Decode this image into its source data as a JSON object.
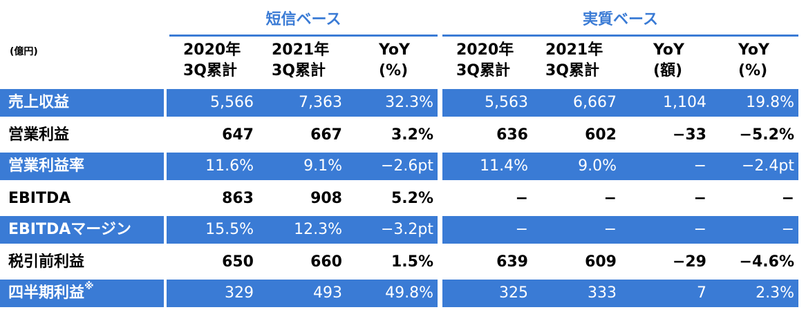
{
  "unit": "(億円)",
  "groups": {
    "tanshin": "短信ベース",
    "jisshitsu": "実質ベース"
  },
  "headers": [
    {
      "l1": "2020年",
      "l2": "3Q累計"
    },
    {
      "l1": "2021年",
      "l2": "3Q累計"
    },
    {
      "l1": "YoY",
      "l2": "(%)"
    },
    {
      "l1": "2020年",
      "l2": "3Q累計"
    },
    {
      "l1": "2021年",
      "l2": "3Q累計"
    },
    {
      "l1": "YoY",
      "l2": "(額)"
    },
    {
      "l1": "YoY",
      "l2": "(%)"
    }
  ],
  "rows": [
    {
      "label": "売上収益",
      "values": [
        "5,566",
        "7,363",
        "32.3%",
        "5,563",
        "6,667",
        "1,104",
        "19.8%"
      ]
    },
    {
      "label": "営業利益",
      "values": [
        "647",
        "667",
        "3.2%",
        "636",
        "602",
        "−33",
        "−5.2%"
      ]
    },
    {
      "label": "営業利益率",
      "values": [
        "11.6%",
        "9.1%",
        "−2.6pt",
        "11.4%",
        "9.0%",
        "−",
        "−2.4pt"
      ]
    },
    {
      "label": "EBITDA",
      "values": [
        "863",
        "908",
        "5.2%",
        "−",
        "−",
        "−",
        "−"
      ]
    },
    {
      "label": "EBITDAマージン",
      "values": [
        "15.5%",
        "12.3%",
        "−3.2pt",
        "−",
        "−",
        "−",
        "−"
      ]
    },
    {
      "label": "税引前利益",
      "values": [
        "650",
        "660",
        "1.5%",
        "639",
        "609",
        "−29",
        "−4.6%"
      ]
    },
    {
      "label": "四半期利益",
      "note_mark": "※",
      "values": [
        "329",
        "493",
        "49.8%",
        "325",
        "333",
        "7",
        "2.3%"
      ]
    }
  ],
  "colors": {
    "accent": "#3a7bd5",
    "row_text_on_blue": "#ffffff"
  }
}
